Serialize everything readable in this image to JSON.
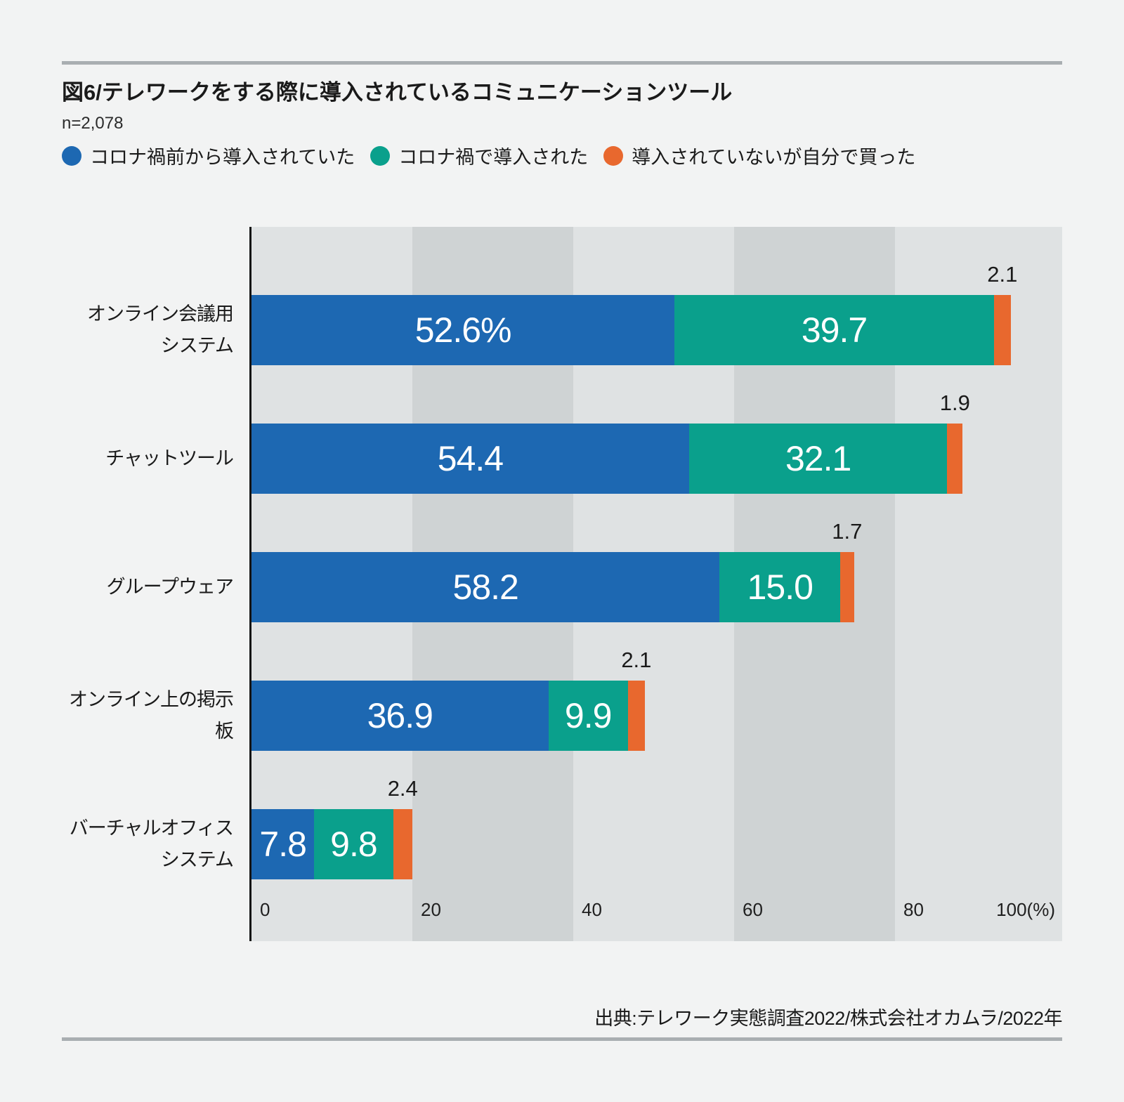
{
  "header": {
    "title": "図6/テレワークをする際に導入されているコミュニケーションツール",
    "sample_size": "n=2,078"
  },
  "legend": [
    {
      "label": "コロナ禍前から導入されていた",
      "color": "#1d68b2"
    },
    {
      "label": "コロナ禍で導入された",
      "color": "#0aa08c"
    },
    {
      "label": "導入されていないが自分で買った",
      "color": "#e8682e"
    }
  ],
  "colors": {
    "series_pre": "#1d68b2",
    "series_during": "#0aa08c",
    "series_self": "#e8682e",
    "band_light": "#dfe2e3",
    "band_dark": "#cfd3d4",
    "axis": "#141414",
    "rule": "#a9aeb1",
    "page_bg": "#f2f3f3"
  },
  "chart_data": {
    "type": "bar",
    "orientation": "horizontal",
    "stacked": true,
    "categories": [
      "オンライン会議用システム",
      "チャットツール",
      "グループウェア",
      "オンライン上の掲示板",
      "バーチャルオフィスシステム"
    ],
    "category_lines": [
      [
        "オンライン会議用",
        "システム"
      ],
      [
        "チャットツール"
      ],
      [
        "グループウェア"
      ],
      [
        "オンライン上の掲示板"
      ],
      [
        "バーチャルオフィス",
        "システム"
      ]
    ],
    "series": [
      {
        "name": "コロナ禍前から導入されていた",
        "color": "#1d68b2",
        "values": [
          52.6,
          54.4,
          58.2,
          36.9,
          7.8
        ],
        "labels": [
          "52.6%",
          "54.4",
          "58.2",
          "36.9",
          "7.8"
        ],
        "label_position": "inside"
      },
      {
        "name": "コロナ禍で導入された",
        "color": "#0aa08c",
        "values": [
          39.7,
          32.1,
          15.0,
          9.9,
          9.8
        ],
        "labels": [
          "39.7",
          "32.1",
          "15.0",
          "9.9",
          "9.8"
        ],
        "label_position": "inside"
      },
      {
        "name": "導入されていないが自分で買った",
        "color": "#e8682e",
        "values": [
          2.1,
          1.9,
          1.7,
          2.1,
          2.4
        ],
        "labels": [
          "2.1",
          "1.9",
          "1.7",
          "2.1",
          "2.4"
        ],
        "label_position": "above"
      }
    ],
    "xlim": [
      0,
      100
    ],
    "x_ticks": [
      {
        "label": "0",
        "value": 0
      },
      {
        "label": "20",
        "value": 20
      },
      {
        "label": "40",
        "value": 40
      },
      {
        "label": "60",
        "value": 60
      },
      {
        "label": "80",
        "value": 80
      },
      {
        "label": "100(%)",
        "value": 100,
        "align": "right"
      }
    ],
    "grid": "alternating-bands",
    "legend_position": "top"
  },
  "source": "出典:テレワーク実態調査2022/株式会社オカムラ/2022年"
}
